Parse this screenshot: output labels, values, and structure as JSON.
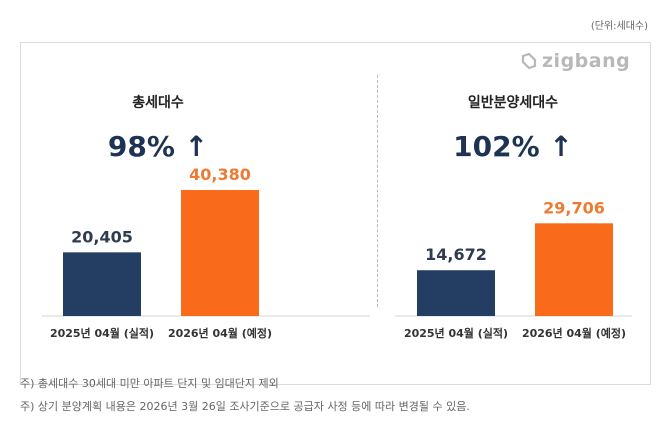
{
  "unit_label": "(단위:세대수)",
  "logo_text": "zigbang",
  "colors": {
    "actual": "#243e63",
    "planned": "#f96a1b",
    "actual_label": "#2f3b4f",
    "planned_label": "#ee7b33",
    "growth": "#1e3354"
  },
  "chart_data": [
    {
      "type": "bar",
      "title": "총세대수",
      "growth": "98% ↑",
      "categories": [
        "2025년 04월 (실적)",
        "2026년 04월 (예정)"
      ],
      "values": [
        20405,
        40380
      ],
      "value_labels": [
        "20,405",
        "40,380"
      ],
      "ylim": [
        0,
        40380
      ],
      "grid": false
    },
    {
      "type": "bar",
      "title": "일반분양세대수",
      "growth": "102% ↑",
      "categories": [
        "2025년 04월 (실적)",
        "2026년 04월 (예정)"
      ],
      "values": [
        14672,
        29706
      ],
      "value_labels": [
        "14,672",
        "29,706"
      ],
      "ylim": [
        0,
        40380
      ],
      "grid": false
    }
  ],
  "notes": [
    "주) 총세대수 30세대 미만 아파트  단지 및 임대단지 제외",
    "주) 상기 분양계획 내용은 2026년 3월 26일 조사기준으로 공급자 사정 등에 따라 변경될 수 있음."
  ]
}
